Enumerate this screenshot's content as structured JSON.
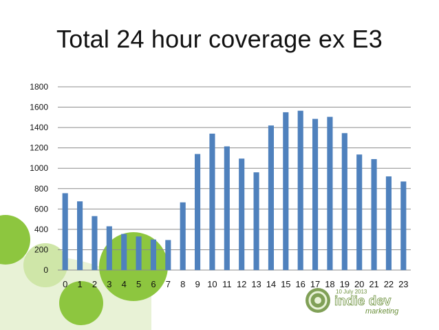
{
  "slide": {
    "title": "Total 24 hour coverage ex E3"
  },
  "colors": {
    "bar": "#4F81BD",
    "grid": "#8C8C8C",
    "accent_green": "#8DC63F",
    "light_green": "#CFE6A8"
  },
  "logo": {
    "date_text": "10 July 2013",
    "brand_top": "indie dev",
    "brand_bottom": "marketing",
    "icon": "swirl-logo-icon"
  },
  "chart_data": {
    "type": "bar",
    "title": "",
    "xlabel": "",
    "ylabel": "",
    "categories": [
      "0",
      "1",
      "2",
      "3",
      "4",
      "5",
      "6",
      "7",
      "8",
      "9",
      "10",
      "11",
      "12",
      "13",
      "14",
      "15",
      "16",
      "17",
      "18",
      "19",
      "20",
      "21",
      "22",
      "23"
    ],
    "values": [
      755,
      675,
      530,
      430,
      355,
      330,
      300,
      295,
      665,
      1140,
      1340,
      1215,
      1095,
      960,
      1420,
      1550,
      1565,
      1485,
      1505,
      1345,
      1135,
      1090,
      920,
      870
    ],
    "ylim": [
      0,
      1800
    ],
    "yticks": [
      0,
      200,
      400,
      600,
      800,
      1000,
      1200,
      1400,
      1600,
      1800
    ],
    "grid": true,
    "legend": "none"
  }
}
